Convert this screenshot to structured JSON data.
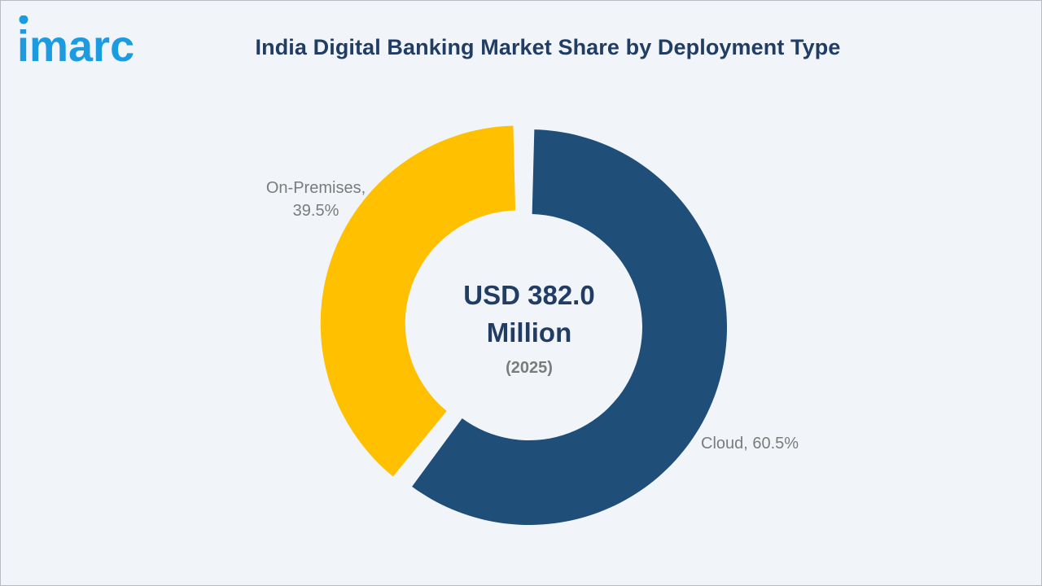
{
  "brand": {
    "logo_text": "imarc",
    "logo_color": "#1d9be0"
  },
  "header": {
    "title": "India Digital Banking Market Share by Deployment Type"
  },
  "chart_data": {
    "type": "pie",
    "title": "India Digital Banking Market Share by Deployment Type",
    "categories": [
      "Cloud",
      "On-Premises"
    ],
    "values": [
      60.5,
      39.5
    ],
    "unit": "%",
    "colors": [
      "#1f4e79",
      "#ffc000"
    ],
    "labels": [
      {
        "lines": [
          "Cloud, 60.5%"
        ]
      },
      {
        "lines": [
          "On-Premises,",
          "39.5%"
        ]
      }
    ],
    "center_label": {
      "value_lines": [
        "USD 382.0",
        "Million"
      ],
      "year": "(2025)"
    },
    "legend": "none"
  }
}
